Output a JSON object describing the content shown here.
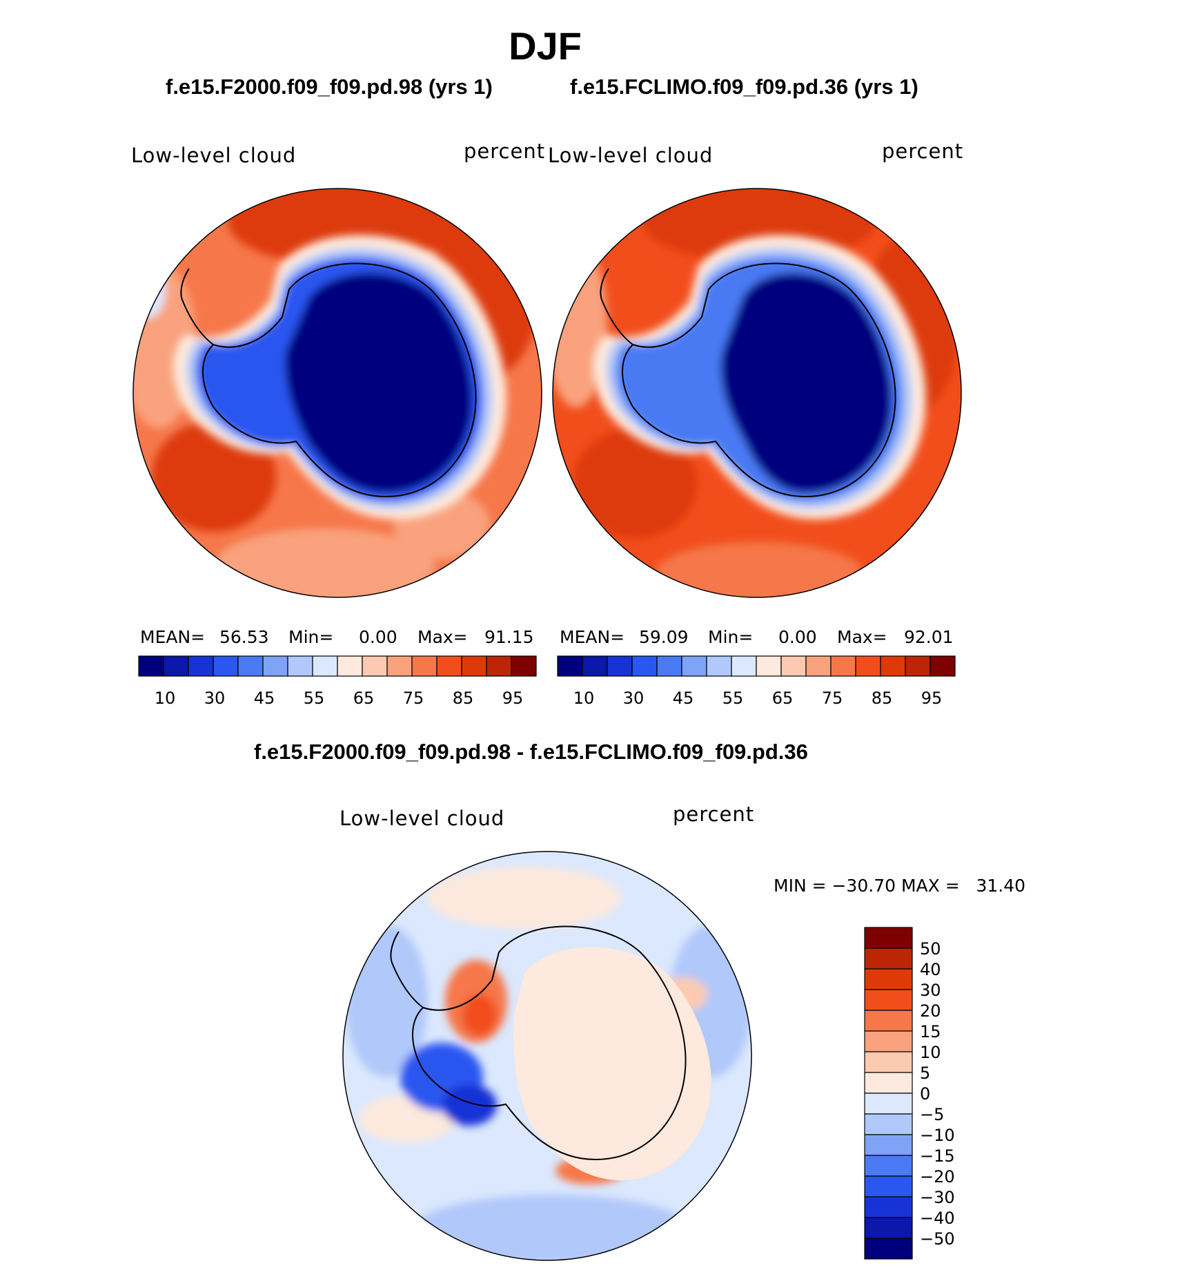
{
  "chart_data": {
    "type": "heatmap",
    "season_title": "DJF",
    "panels": [
      {
        "case_title": "f.e15.F2000.f09_f09.pd.98 (yrs 1)",
        "variable_label": "Low-level cloud",
        "units_label": "percent",
        "stats": {
          "mean_label": "MEAN=",
          "mean": "56.53",
          "min_label": "Min=",
          "min": "0.00",
          "max_label": "Max=",
          "max": "91.15"
        },
        "colorbar_ticks": [
          "10",
          "30",
          "45",
          "55",
          "65",
          "75",
          "85",
          "95"
        ]
      },
      {
        "case_title": "f.e15.FCLIMO.f09_f09.pd.36 (yrs 1)",
        "variable_label": "Low-level cloud",
        "units_label": "percent",
        "stats": {
          "mean_label": "MEAN=",
          "mean": "59.09",
          "min_label": "Min=",
          "min": "0.00",
          "max_label": "Max=",
          "max": "92.01"
        },
        "colorbar_ticks": [
          "10",
          "30",
          "45",
          "55",
          "65",
          "75",
          "85",
          "95"
        ]
      }
    ],
    "difference": {
      "title": "f.e15.F2000.f09_f09.pd.98 - f.e15.FCLIMO.f09_f09.pd.36",
      "variable_label": "Low-level cloud",
      "units_label": "percent",
      "minmax_text": "MIN = −30.70 MAX =   31.40",
      "colorbar_ticks": [
        "50",
        "40",
        "30",
        "20",
        "15",
        "10",
        "5",
        "0",
        "−5",
        "−10",
        "−15",
        "−20",
        "−30",
        "−40",
        "−50"
      ]
    },
    "colors": {
      "levels_16": [
        "#00007f",
        "#0a19a8",
        "#1733d6",
        "#2957f0",
        "#4a7af4",
        "#7ea3f7",
        "#b0c8fa",
        "#dbe8fd",
        "#fde9dd",
        "#fccab0",
        "#f9a27d",
        "#f6774a",
        "#f24e1c",
        "#dd3a08",
        "#bc2505",
        "#7e0000"
      ],
      "diff_levels_16": [
        "#00007f",
        "#0a19a8",
        "#1733d6",
        "#2957f0",
        "#4a7af4",
        "#7ea3f7",
        "#b0c8fa",
        "#dbe8fd",
        "#fde9dd",
        "#fccab0",
        "#f9a27d",
        "#f6774a",
        "#f24e1c",
        "#dd3a08",
        "#bc2505",
        "#7e0000"
      ]
    }
  }
}
